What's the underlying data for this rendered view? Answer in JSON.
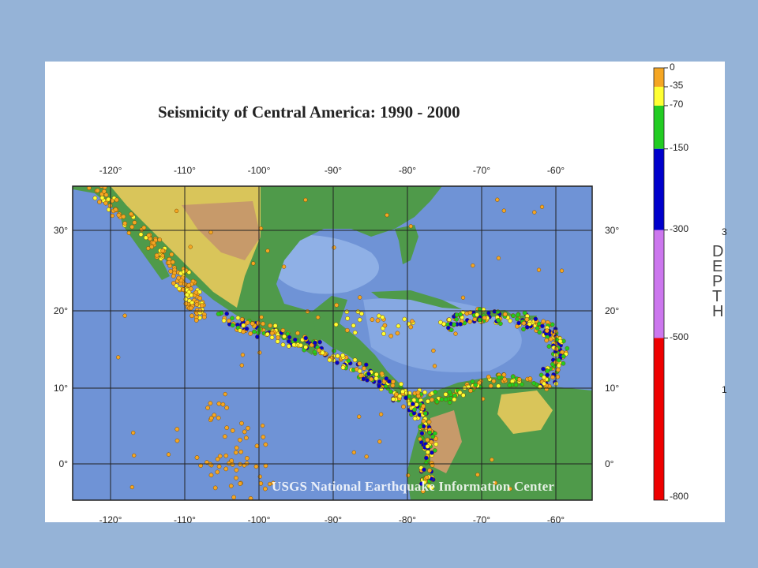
{
  "slide": {
    "background": "#95b3d7",
    "title": "Seismicity of Central America: 1990 - 2000",
    "credit": "USGS National Earthquake Information Center"
  },
  "map": {
    "lon_ticks": [
      "-120°",
      "-110°",
      "-100°",
      "-90°",
      "-80°",
      "-70°",
      "-60°"
    ],
    "lat_ticks_left": [
      "30°",
      "20°",
      "10°",
      "0°"
    ],
    "lat_ticks_right": [
      "30°",
      "20°",
      "10°",
      "0°"
    ],
    "lon_range": [
      -125,
      -55
    ],
    "lat_range": [
      -5,
      36
    ],
    "colors": {
      "ocean": "#6f93d6",
      "shelf": "#a9c6ea",
      "land_low": "#4f9a4a",
      "land_high": "#d9c55a",
      "mountain": "#c79a6a",
      "grid": "#222222"
    }
  },
  "legend": {
    "title": "DEPTH",
    "labels": [
      "0",
      "-35",
      "-70",
      "-150",
      "-300",
      "-500",
      "-800"
    ],
    "bands": [
      {
        "from": 0,
        "to": 35,
        "color": "#f5a623"
      },
      {
        "from": 35,
        "to": 70,
        "color": "#ffff33"
      },
      {
        "from": 70,
        "to": 150,
        "color": "#22cc22"
      },
      {
        "from": 150,
        "to": 300,
        "color": "#0000cc"
      },
      {
        "from": 300,
        "to": 500,
        "color": "#cc77ee"
      },
      {
        "from": 500,
        "to": 800,
        "color": "#ee0000"
      }
    ],
    "cut_digits": [
      "3",
      "1"
    ]
  }
}
